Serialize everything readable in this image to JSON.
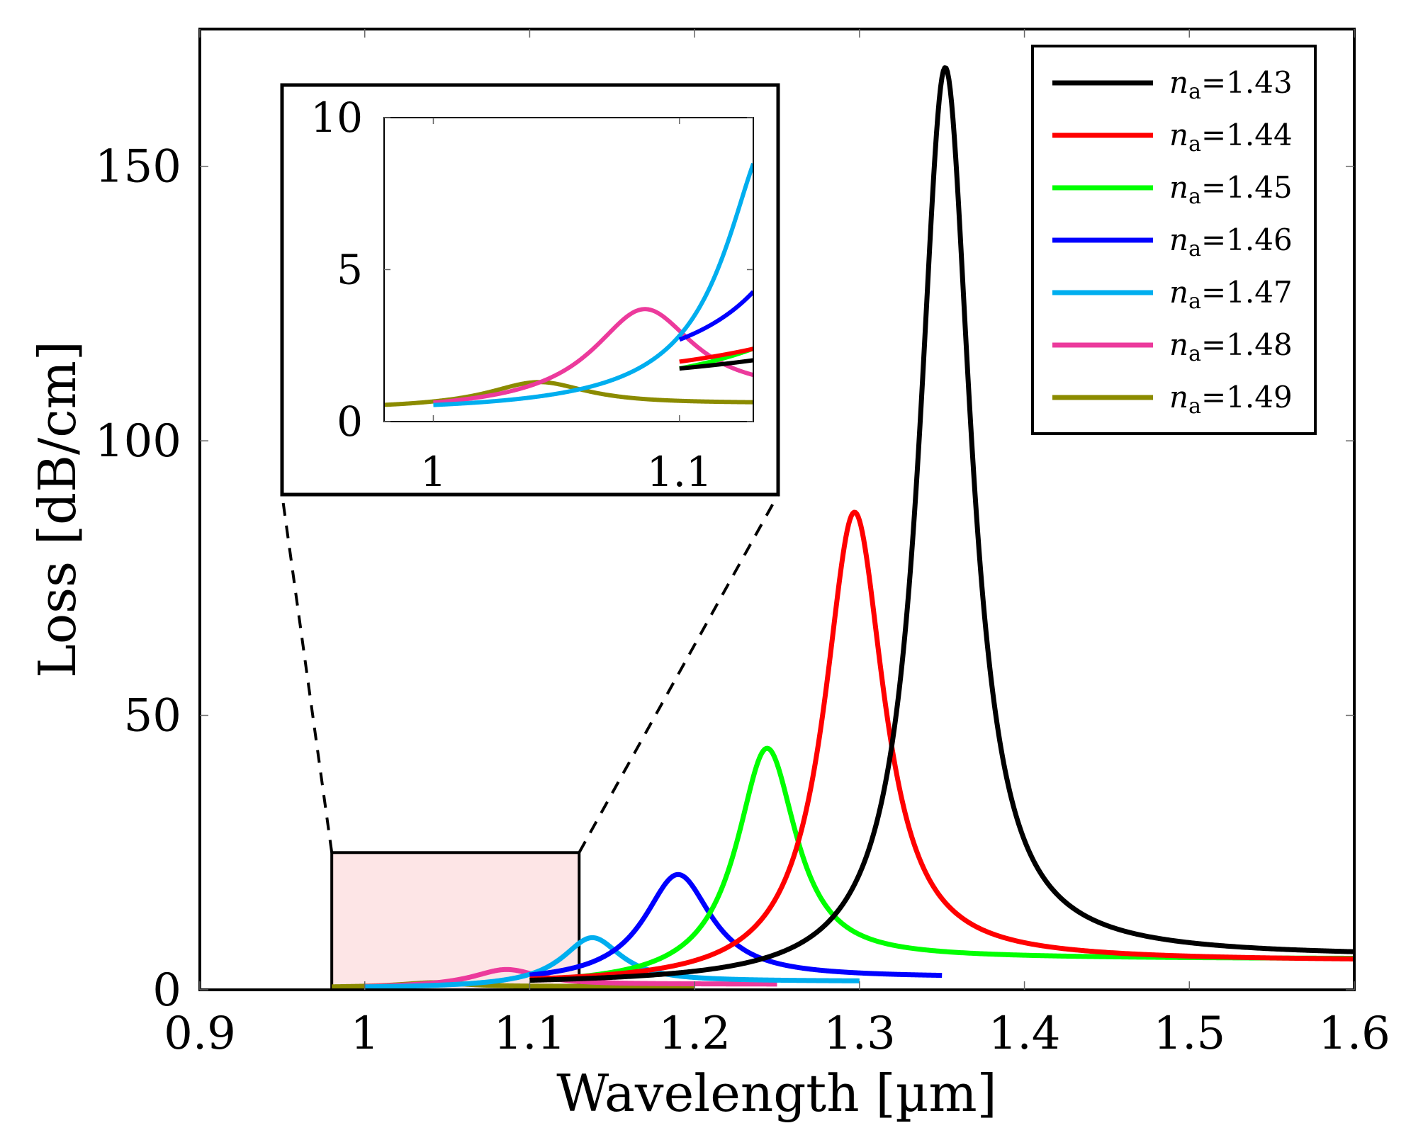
{
  "chart_data": {
    "type": "line",
    "title": "",
    "xlabel": "Wavelength [µm]",
    "ylabel": "Loss [dB/cm]",
    "xlim": [
      0.9,
      1.6
    ],
    "ylim": [
      0,
      175
    ],
    "xticks": [
      0.9,
      1.0,
      1.1,
      1.2,
      1.3,
      1.4,
      1.5,
      1.6
    ],
    "xtick_labels": [
      "0.9",
      "1",
      "1.1",
      "1.2",
      "1.3",
      "1.4",
      "1.5",
      "1.6"
    ],
    "yticks": [
      0,
      50,
      100,
      150
    ],
    "ytick_labels": [
      "0",
      "50",
      "100",
      "150"
    ],
    "grid": false,
    "legend_position": "top-right",
    "legend_var": "n",
    "legend_sub": "a",
    "series": [
      {
        "name": "1.43",
        "color": "#000000",
        "x_range": [
          1.1,
          1.6
        ],
        "peak_x": 1.352,
        "peak_y": 168,
        "hwhm": 0.019,
        "base_left": 0.8,
        "base_right": 6.0
      },
      {
        "name": "1.44",
        "color": "#ff0000",
        "x_range": [
          1.1,
          1.6
        ],
        "peak_x": 1.297,
        "peak_y": 87,
        "hwhm": 0.022,
        "base_left": 0.9,
        "base_right": 5.2
      },
      {
        "name": "1.45",
        "color": "#00ff00",
        "x_range": [
          1.1,
          1.6
        ],
        "peak_x": 1.244,
        "peak_y": 44,
        "hwhm": 0.022,
        "base_left": 0.7,
        "base_right": 5.6
      },
      {
        "name": "1.46",
        "color": "#0000ff",
        "x_range": [
          1.1,
          1.35
        ],
        "peak_x": 1.19,
        "peak_y": 21,
        "hwhm": 0.025,
        "base_left": 1.2,
        "base_right": 2.2
      },
      {
        "name": "1.47",
        "color": "#00aeef",
        "x_range": [
          1.0,
          1.3
        ],
        "peak_x": 1.138,
        "peak_y": 9.5,
        "hwhm": 0.022,
        "base_left": 0.3,
        "base_right": 1.5
      },
      {
        "name": "1.48",
        "color": "#ec3a9c",
        "x_range": [
          1.0,
          1.25
        ],
        "peak_x": 1.086,
        "peak_y": 3.7,
        "hwhm": 0.025,
        "base_left": 0.3,
        "base_right": 1.0
      },
      {
        "name": "1.49",
        "color": "#8b8b00",
        "x_range": [
          0.98,
          1.2
        ],
        "peak_x": 1.043,
        "peak_y": 1.3,
        "hwhm": 0.025,
        "base_left": 0.4,
        "base_right": 0.6
      }
    ],
    "zoom_region": {
      "x": [
        0.98,
        1.13
      ],
      "y": [
        0,
        25
      ]
    },
    "inset": {
      "xlim": [
        0.98,
        1.13
      ],
      "ylim": [
        0,
        10
      ],
      "xticks": [
        1.0,
        1.1
      ],
      "xtick_labels": [
        "1",
        "1.1"
      ],
      "yticks": [
        0,
        5,
        10
      ],
      "ytick_labels": [
        "0",
        "5",
        "10"
      ]
    }
  }
}
